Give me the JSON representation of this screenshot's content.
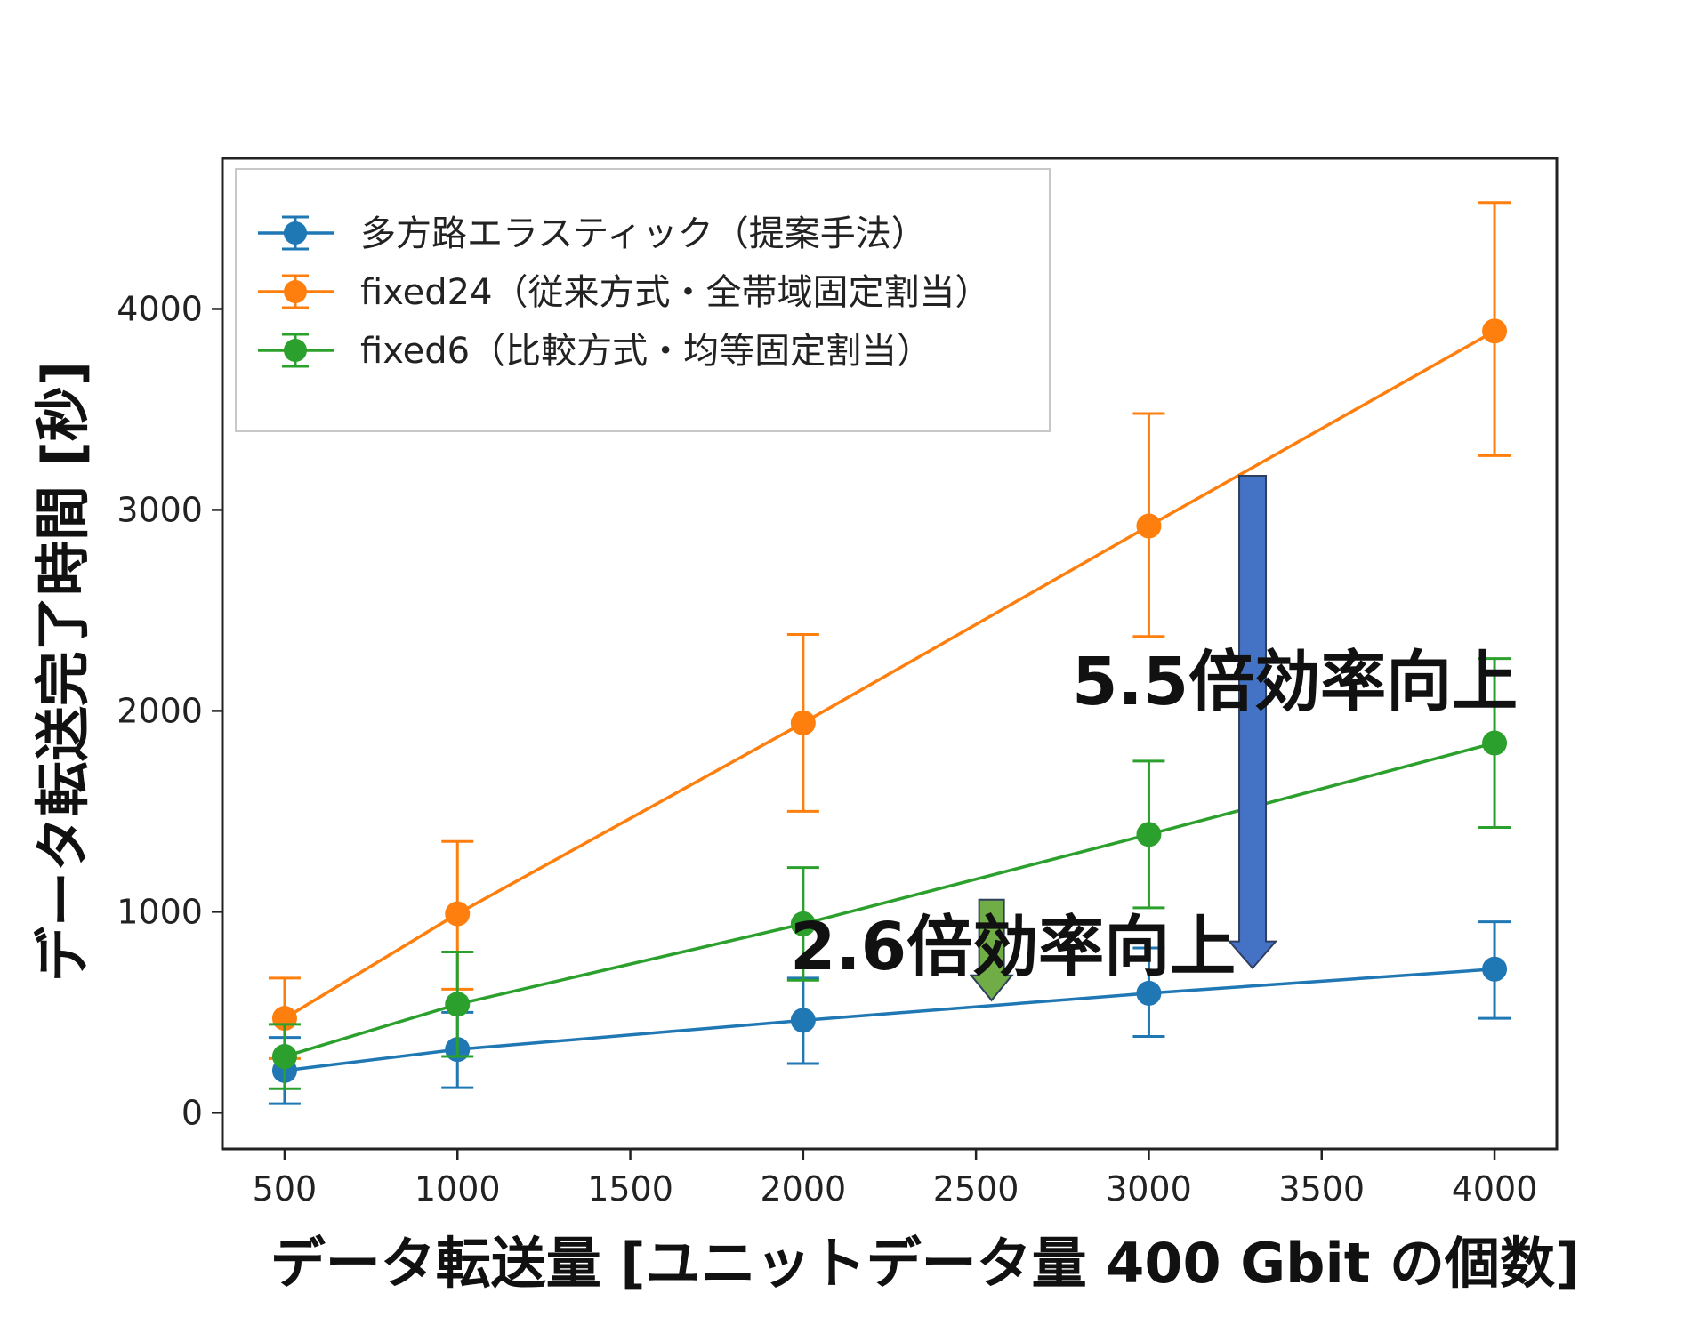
{
  "chart_data": {
    "type": "line",
    "title": "",
    "xlabel": "データ転送量 [ユニットデータ量 400 Gbit の個数]",
    "ylabel": "データ転送完了時間 [秒]",
    "xlim": [
      320,
      4180
    ],
    "ylim": [
      -180,
      4750
    ],
    "x_ticks": [
      "500",
      "1000",
      "1500",
      "2000",
      "2500",
      "3000",
      "3500",
      "4000"
    ],
    "y_ticks": [
      "0",
      "1000",
      "2000",
      "3000",
      "4000"
    ],
    "x": [
      500,
      1000,
      2000,
      3000,
      4000
    ],
    "grid": false,
    "legend_position": "top-left",
    "series": [
      {
        "name": "多方路エラスティック（提案手法）",
        "color": "#1f77b4",
        "values": [
          210,
          315,
          460,
          595,
          715
        ],
        "err_low": [
          45,
          125,
          245,
          380,
          470
        ],
        "err_high": [
          375,
          500,
          670,
          820,
          950
        ]
      },
      {
        "name": "fixed24（従来方式・全帯域固定割当）",
        "color": "#ff7f0e",
        "values": [
          470,
          990,
          1940,
          2920,
          3890
        ],
        "err_low": [
          270,
          615,
          1500,
          2370,
          3270
        ],
        "err_high": [
          670,
          1350,
          2380,
          3480,
          4530
        ]
      },
      {
        "name": "fixed6（比較方式・均等固定割当）",
        "color": "#2ca02c",
        "values": [
          280,
          540,
          940,
          1385,
          1840
        ],
        "err_low": [
          120,
          280,
          660,
          1020,
          1420
        ],
        "err_high": [
          440,
          800,
          1220,
          1750,
          2260
        ]
      }
    ],
    "annotations": [
      {
        "text": "5.5倍効率向上",
        "arrow_color": "#4472c4",
        "x": 3300,
        "y_from": 3170,
        "y_to": 720
      },
      {
        "text": "2.6倍効率向上",
        "arrow_color": "#70ad47",
        "x": 2545,
        "y_from": 1060,
        "y_to": 560
      }
    ]
  }
}
